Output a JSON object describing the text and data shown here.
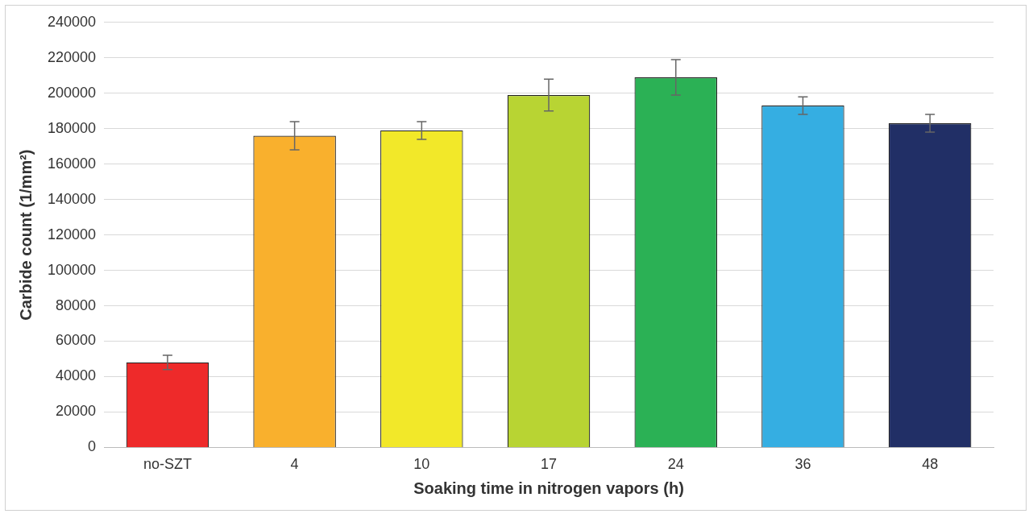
{
  "chart_data": {
    "type": "bar",
    "categories": [
      "no-SZT",
      "4",
      "10",
      "17",
      "24",
      "36",
      "48"
    ],
    "values": [
      48000,
      176000,
      179000,
      199000,
      209000,
      193000,
      183000
    ],
    "errors": [
      4000,
      8000,
      5000,
      9000,
      10000,
      5000,
      5000
    ],
    "colors": [
      "#ee2a2a",
      "#f9b02d",
      "#f2e829",
      "#b8d433",
      "#2bb155",
      "#35aee2",
      "#212f66"
    ],
    "xlabel": "Soaking time in nitrogen vapors (h)",
    "ylabel": "Carbide count (1/mm²)",
    "ylim": [
      0,
      240000
    ],
    "yticks": [
      0,
      20000,
      40000,
      60000,
      80000,
      100000,
      120000,
      140000,
      160000,
      180000,
      200000,
      220000,
      240000
    ],
    "grid": "y",
    "legend": false
  }
}
